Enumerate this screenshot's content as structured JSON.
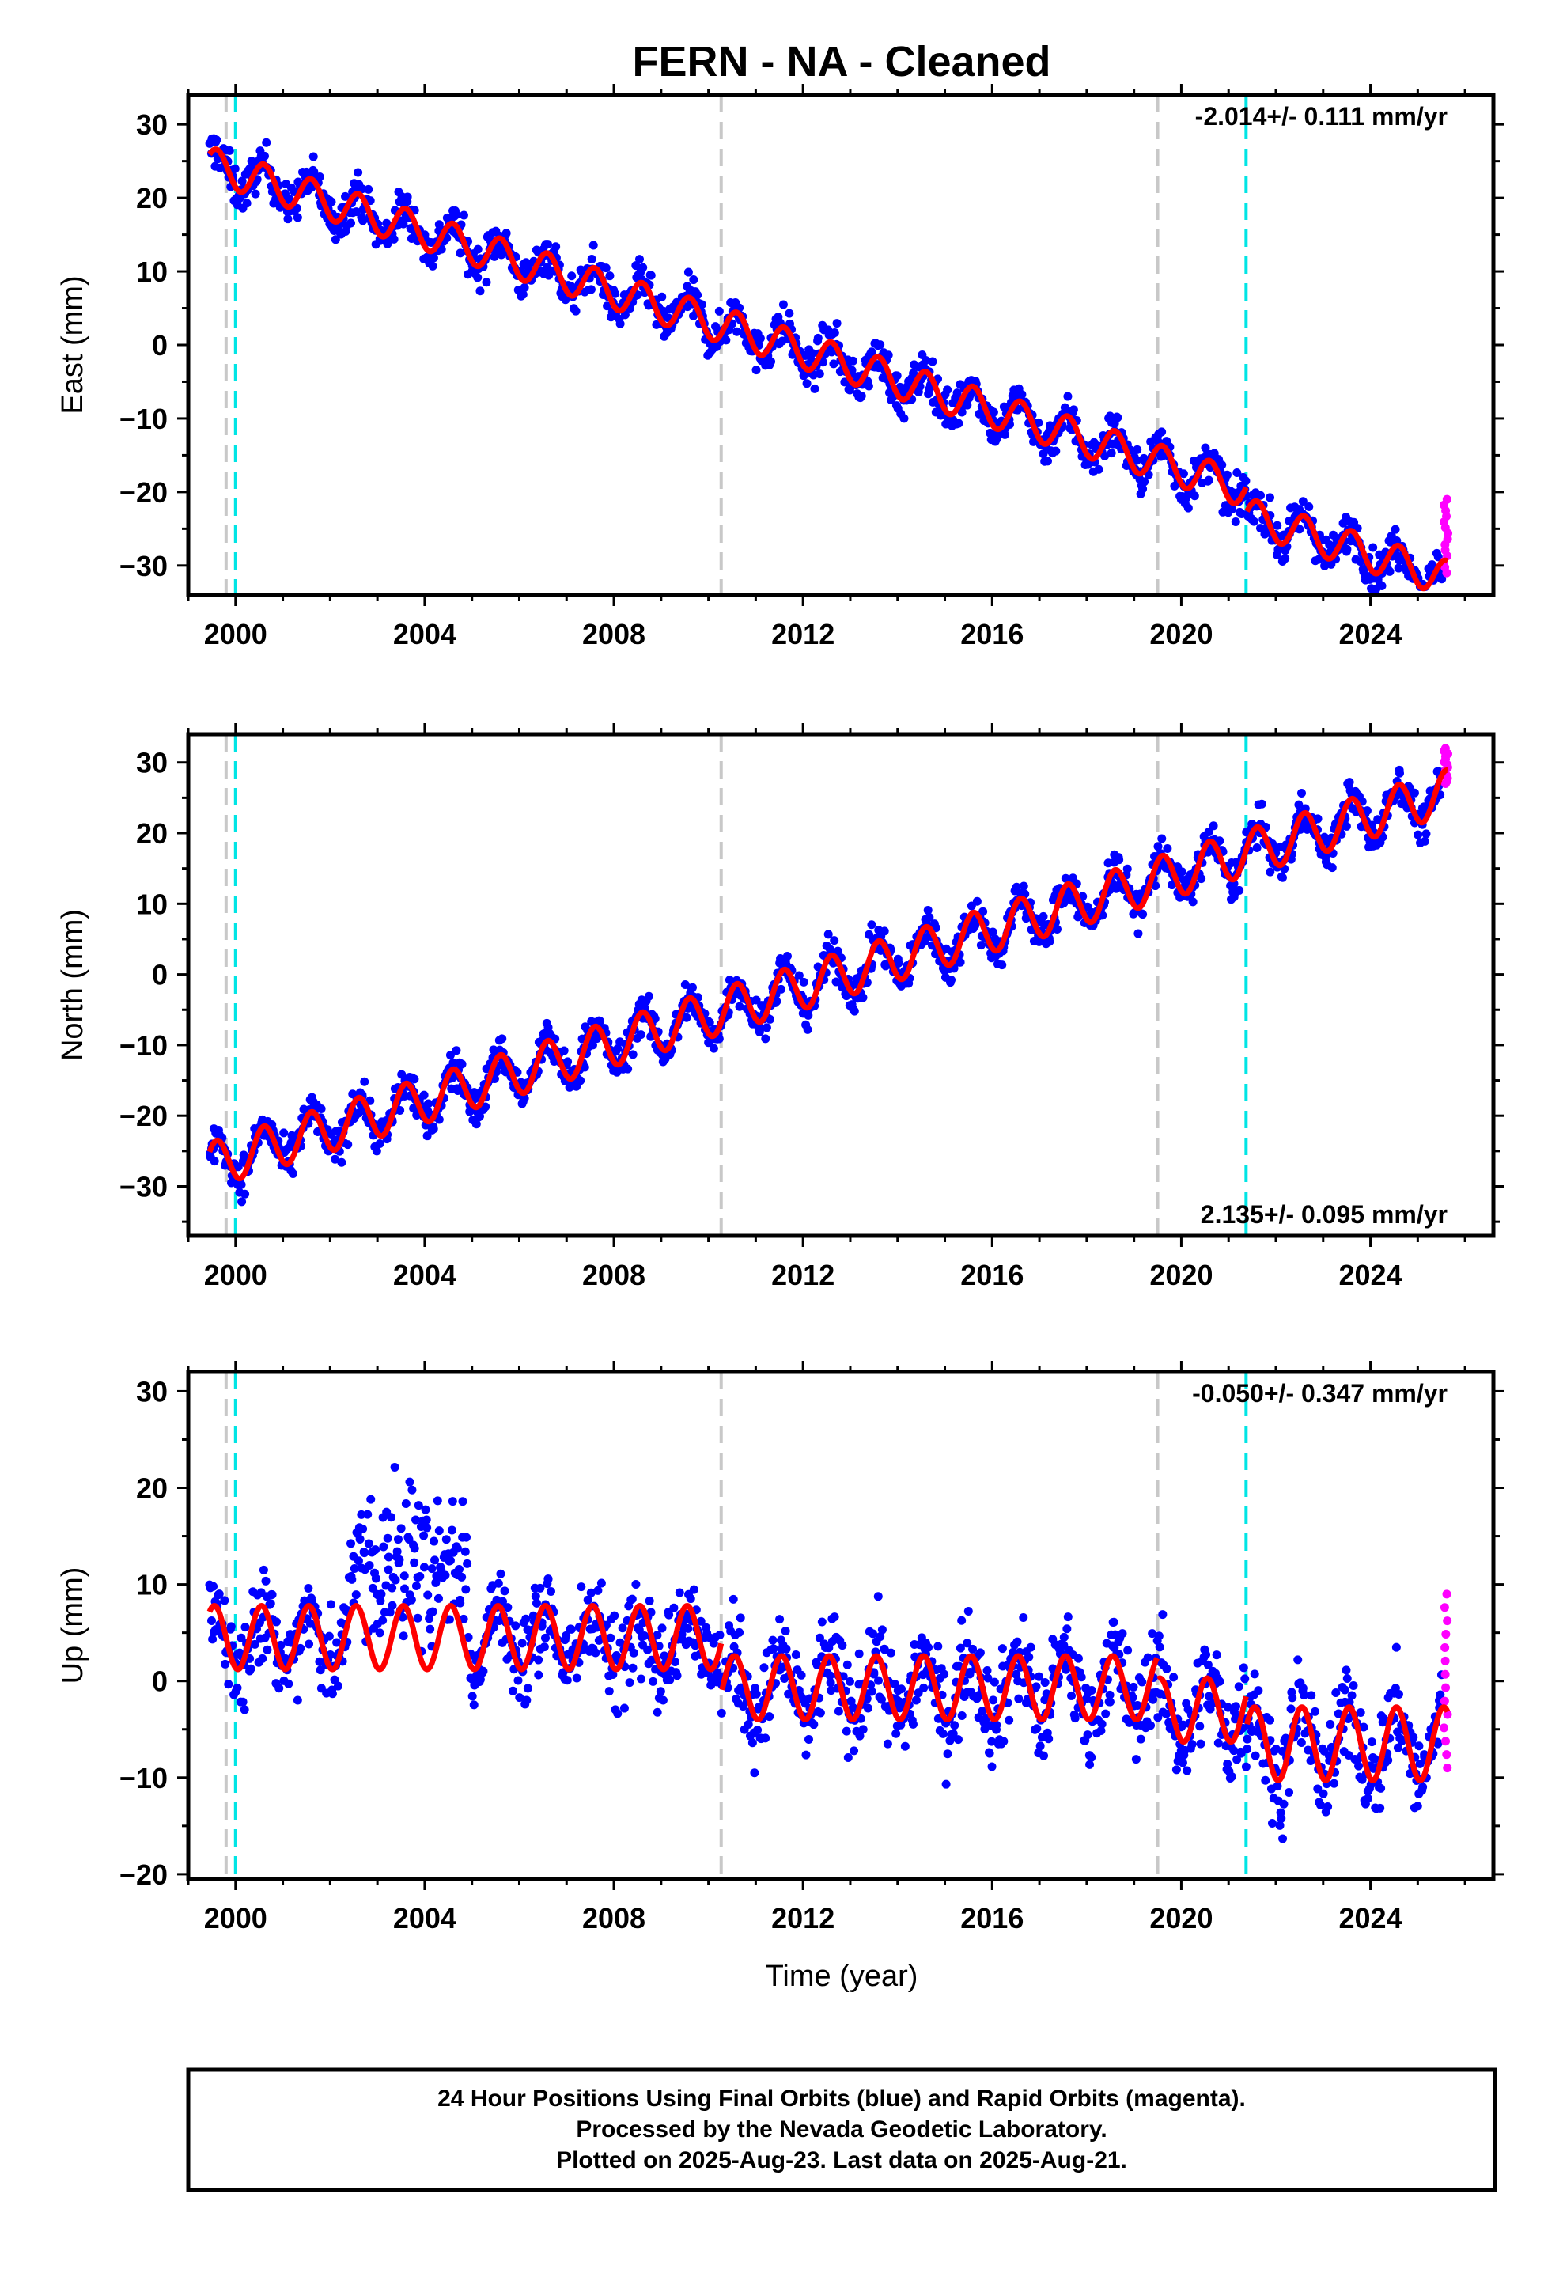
{
  "title": "FERN  - NA - Cleaned",
  "xlabel": "Time (year)",
  "caption": [
    "24 Hour Positions Using Final Orbits (blue) and Rapid Orbits (magenta).",
    "Processed by the Nevada Geodetic Laboratory.",
    "Plotted on 2025-Aug-23. Last data on 2025-Aug-21."
  ],
  "colors": {
    "final_orbits": "#0000ff",
    "rapid_orbits": "#ff00ff",
    "model_fit": "#ff0000",
    "equipment_change": "#c8c8c8",
    "earthquake": "#00e5e5"
  },
  "chart_data": [
    {
      "type": "scatter",
      "name": "east",
      "ylabel": "East (mm)",
      "rate_label": "-2.014+/- 0.111 mm/yr",
      "rate_position": "top-right",
      "xlim": [
        1999.0,
        2026.6
      ],
      "ylim": [
        -34,
        34
      ],
      "xticks": [
        2000,
        2004,
        2008,
        2012,
        2016,
        2020,
        2024
      ],
      "yticks": [
        -30,
        -20,
        -10,
        0,
        10,
        20,
        30
      ],
      "grid": false,
      "data_start": 1999.45,
      "data_end": 2025.64,
      "final_orbits_trend": {
        "x": [
          1999.45,
          2025.5
        ],
        "y": [
          24.5,
          -28.0
        ]
      },
      "scatter_spread_mm": 2.5,
      "seasonal_amplitude_mm": 2.4,
      "offsets": [
        {
          "x": 2021.37,
          "dy": -3.5
        }
      ],
      "rapid_orbits": {
        "x": [
          2025.55,
          2025.64
        ],
        "y": [
          -31,
          -21
        ]
      },
      "model_fit_label": "",
      "equipment_change_lines": [
        1999.8,
        2010.27,
        2019.5
      ],
      "earthquake_lines": [
        2000.0,
        2021.37
      ]
    },
    {
      "type": "scatter",
      "name": "north",
      "ylabel": "North (mm)",
      "rate_label": "2.135+/- 0.095 mm/yr",
      "rate_position": "bottom-right",
      "xlim": [
        1999.0,
        2026.6
      ],
      "ylim": [
        -37,
        34
      ],
      "xticks": [
        2000,
        2004,
        2008,
        2012,
        2016,
        2020,
        2024
      ],
      "yticks": [
        -30,
        -20,
        -10,
        0,
        10,
        20,
        30
      ],
      "grid": false,
      "data_start": 1999.45,
      "data_end": 2025.64,
      "final_orbits_trend": {
        "x": [
          1999.45,
          2025.5
        ],
        "y": [
          -27.0,
          25.5
        ]
      },
      "scatter_spread_mm": 2.5,
      "seasonal_amplitude_mm": 3.2,
      "offsets": [],
      "rapid_orbits": {
        "x": [
          2025.55,
          2025.64
        ],
        "y": [
          27,
          32
        ]
      },
      "equipment_change_lines": [
        1999.8,
        2010.27,
        2019.5
      ],
      "earthquake_lines": [
        2000.0,
        2021.37
      ]
    },
    {
      "type": "scatter",
      "name": "up",
      "ylabel": "Up (mm)",
      "rate_label": "-0.050+/- 0.347 mm/yr",
      "rate_position": "top-right",
      "xlim": [
        1999.0,
        2026.6
      ],
      "ylim": [
        -20.5,
        32
      ],
      "xticks": [
        2000,
        2004,
        2008,
        2012,
        2016,
        2020,
        2024
      ],
      "yticks": [
        -20,
        -10,
        0,
        10,
        20,
        30
      ],
      "grid": false,
      "data_start": 1999.45,
      "data_end": 2025.64,
      "segments": [
        {
          "x": [
            1999.45,
            2010.27
          ],
          "mean": 4.5,
          "amplitude": 3.3
        },
        {
          "x": [
            2010.27,
            2019.5
          ],
          "mean": -0.7,
          "amplitude": 3.3
        },
        {
          "x": [
            2019.5,
            2021.37
          ],
          "mean": -3.0,
          "amplitude": 3.3
        },
        {
          "x": [
            2021.37,
            2025.64
          ],
          "mean": -6.5,
          "amplitude": 3.8
        }
      ],
      "anomaly": {
        "x": [
          2002.4,
          2004.9
        ],
        "mean": 15
      },
      "scatter_spread_mm": 4.5,
      "rapid_orbits": {
        "x": [
          2025.55,
          2025.64
        ],
        "y": [
          -9,
          9
        ]
      },
      "equipment_change_lines": [
        1999.8,
        2010.27,
        2019.5
      ],
      "earthquake_lines": [
        2000.0,
        2021.37
      ]
    }
  ]
}
